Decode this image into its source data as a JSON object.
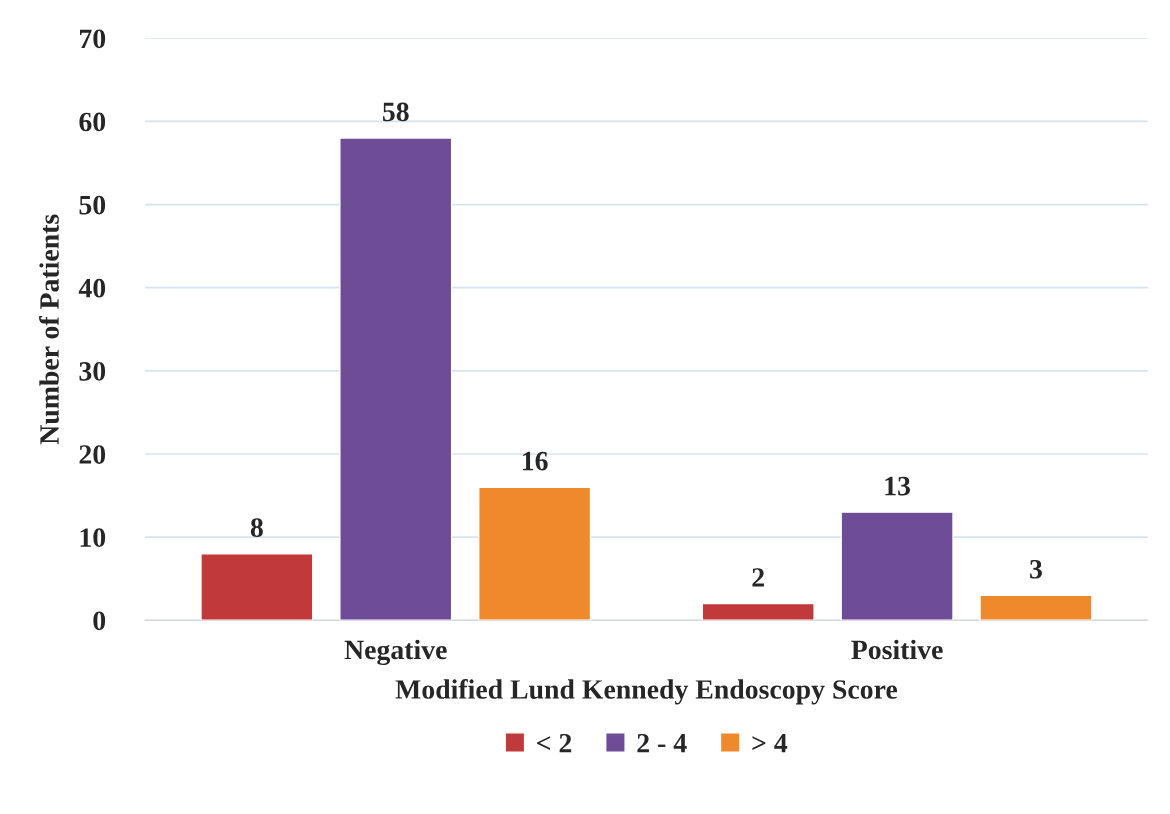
{
  "chart_data": {
    "type": "bar",
    "xlabel": "Modified Lund Kennedy Endoscopy Score",
    "ylabel": "Number of Patients",
    "categories": [
      "Negative",
      "Positive"
    ],
    "series": [
      {
        "name": "< 2",
        "color": "#c0393b",
        "values": [
          8,
          2
        ]
      },
      {
        "name": "2 - 4",
        "color": "#6f4c96",
        "values": [
          58,
          13
        ]
      },
      {
        "name": "> 4",
        "color": "#ee8a2c",
        "values": [
          16,
          3
        ]
      }
    ],
    "ylim": [
      0,
      70
    ],
    "yticks": [
      0,
      10,
      20,
      30,
      40,
      50,
      60,
      70
    ],
    "grid": "y",
    "legend": "bottom",
    "data_labels": true
  }
}
